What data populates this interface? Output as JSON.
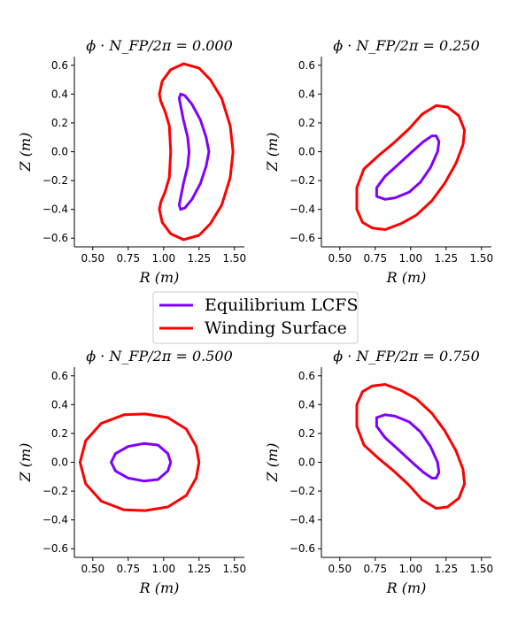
{
  "chart_data": {
    "type": "line",
    "legend": {
      "placement": "center",
      "entries": [
        {
          "name": "Equilibrium LCFS",
          "color": "#7f00ff"
        },
        {
          "name": "Winding Surface",
          "color": "#ff0000"
        }
      ]
    },
    "panels": [
      {
        "title": "ϕ · N_FP/2π = 0.000",
        "xlabel": "R (m)",
        "ylabel": "Z (m)",
        "xlim": [
          0.37,
          1.57
        ],
        "ylim": [
          -0.66,
          0.66
        ],
        "xticks": [
          "0.50",
          "0.75",
          "1.00",
          "1.25",
          "1.50"
        ],
        "yticks": [
          "−0.6",
          "−0.4",
          "−0.2",
          "0.0",
          "0.2",
          "0.4",
          "0.6"
        ],
        "series": [
          {
            "name": "Equilibrium LCFS",
            "color": "#7f00ff",
            "points": [
              [
                1.12,
                0.4
              ],
              [
                1.15,
                0.39
              ],
              [
                1.2,
                0.33
              ],
              [
                1.26,
                0.22
              ],
              [
                1.3,
                0.1
              ],
              [
                1.32,
                0.0
              ],
              [
                1.3,
                -0.1
              ],
              [
                1.26,
                -0.22
              ],
              [
                1.2,
                -0.33
              ],
              [
                1.15,
                -0.39
              ],
              [
                1.12,
                -0.4
              ],
              [
                1.11,
                -0.37
              ],
              [
                1.14,
                -0.22
              ],
              [
                1.17,
                -0.1
              ],
              [
                1.18,
                0.0
              ],
              [
                1.17,
                0.1
              ],
              [
                1.14,
                0.22
              ],
              [
                1.11,
                0.37
              ],
              [
                1.12,
                0.4
              ]
            ]
          },
          {
            "name": "Winding Surface",
            "color": "#ff0000",
            "points": [
              [
                1.14,
                0.61
              ],
              [
                1.25,
                0.58
              ],
              [
                1.33,
                0.5
              ],
              [
                1.41,
                0.37
              ],
              [
                1.47,
                0.18
              ],
              [
                1.49,
                0.0
              ],
              [
                1.47,
                -0.18
              ],
              [
                1.41,
                -0.37
              ],
              [
                1.33,
                -0.5
              ],
              [
                1.25,
                -0.58
              ],
              [
                1.14,
                -0.61
              ],
              [
                1.05,
                -0.57
              ],
              [
                0.99,
                -0.49
              ],
              [
                0.97,
                -0.4
              ],
              [
                0.98,
                -0.35
              ],
              [
                1.01,
                -0.28
              ],
              [
                1.04,
                -0.18
              ],
              [
                1.05,
                0.0
              ],
              [
                1.04,
                0.18
              ],
              [
                1.01,
                0.28
              ],
              [
                0.98,
                0.35
              ],
              [
                0.97,
                0.4
              ],
              [
                0.99,
                0.49
              ],
              [
                1.05,
                0.57
              ],
              [
                1.14,
                0.61
              ]
            ]
          }
        ]
      },
      {
        "title": "ϕ · N_FP/2π = 0.250",
        "xlabel": "R (m)",
        "ylabel": "Z (m)",
        "xlim": [
          0.37,
          1.57
        ],
        "ylim": [
          -0.66,
          0.66
        ],
        "xticks": [
          "0.50",
          "0.75",
          "1.00",
          "1.25",
          "1.50"
        ],
        "yticks": [
          "−0.6",
          "−0.4",
          "−0.2",
          "0.0",
          "0.2",
          "0.4",
          "0.6"
        ],
        "series": [
          {
            "name": "Equilibrium LCFS",
            "color": "#7f00ff",
            "points": [
              [
                1.18,
                0.11
              ],
              [
                1.2,
                0.07
              ],
              [
                1.19,
                0.0
              ],
              [
                1.14,
                -0.11
              ],
              [
                1.07,
                -0.21
              ],
              [
                0.99,
                -0.28
              ],
              [
                0.89,
                -0.32
              ],
              [
                0.82,
                -0.33
              ],
              [
                0.76,
                -0.31
              ],
              [
                0.76,
                -0.25
              ],
              [
                0.82,
                -0.17
              ],
              [
                0.91,
                -0.09
              ],
              [
                1.01,
                0.0
              ],
              [
                1.09,
                0.07
              ],
              [
                1.15,
                0.11
              ],
              [
                1.18,
                0.11
              ]
            ]
          },
          {
            "name": "Winding Surface",
            "color": "#ff0000",
            "points": [
              [
                1.18,
                0.32
              ],
              [
                1.26,
                0.31
              ],
              [
                1.34,
                0.25
              ],
              [
                1.38,
                0.15
              ],
              [
                1.37,
                0.05
              ],
              [
                1.32,
                -0.08
              ],
              [
                1.24,
                -0.22
              ],
              [
                1.15,
                -0.34
              ],
              [
                1.04,
                -0.44
              ],
              [
                0.93,
                -0.5
              ],
              [
                0.82,
                -0.54
              ],
              [
                0.73,
                -0.53
              ],
              [
                0.66,
                -0.49
              ],
              [
                0.62,
                -0.4
              ],
              [
                0.62,
                -0.25
              ],
              [
                0.67,
                -0.12
              ],
              [
                0.77,
                -0.03
              ],
              [
                0.88,
                0.06
              ],
              [
                0.99,
                0.16
              ],
              [
                1.08,
                0.26
              ],
              [
                1.18,
                0.32
              ]
            ]
          }
        ]
      },
      {
        "title": "ϕ · N_FP/2π = 0.500",
        "xlabel": "R (m)",
        "ylabel": "Z (m)",
        "xlim": [
          0.37,
          1.57
        ],
        "ylim": [
          -0.66,
          0.66
        ],
        "xticks": [
          "0.50",
          "0.75",
          "1.00",
          "1.25",
          "1.50"
        ],
        "yticks": [
          "−0.6",
          "−0.4",
          "−0.2",
          "0.0",
          "0.2",
          "0.4",
          "0.6"
        ],
        "series": [
          {
            "name": "Equilibrium LCFS",
            "color": "#7f00ff",
            "points": [
              [
                0.63,
                0.0
              ],
              [
                0.66,
                0.06
              ],
              [
                0.75,
                0.11
              ],
              [
                0.86,
                0.13
              ],
              [
                0.96,
                0.12
              ],
              [
                1.03,
                0.06
              ],
              [
                1.05,
                0.0
              ],
              [
                1.03,
                -0.06
              ],
              [
                0.96,
                -0.12
              ],
              [
                0.86,
                -0.13
              ],
              [
                0.75,
                -0.11
              ],
              [
                0.66,
                -0.06
              ],
              [
                0.63,
                0.0
              ]
            ]
          },
          {
            "name": "Winding Surface",
            "color": "#ff0000",
            "points": [
              [
                0.41,
                0.0
              ],
              [
                0.45,
                0.15
              ],
              [
                0.56,
                0.27
              ],
              [
                0.72,
                0.33
              ],
              [
                0.87,
                0.335
              ],
              [
                1.03,
                0.31
              ],
              [
                1.16,
                0.23
              ],
              [
                1.23,
                0.11
              ],
              [
                1.25,
                0.0
              ],
              [
                1.23,
                -0.11
              ],
              [
                1.16,
                -0.23
              ],
              [
                1.03,
                -0.31
              ],
              [
                0.87,
                -0.335
              ],
              [
                0.72,
                -0.33
              ],
              [
                0.56,
                -0.27
              ],
              [
                0.45,
                -0.15
              ],
              [
                0.41,
                0.0
              ]
            ]
          }
        ]
      },
      {
        "title": "ϕ · N_FP/2π = 0.750",
        "xlabel": "R (m)",
        "ylabel": "Z (m)",
        "xlim": [
          0.37,
          1.57
        ],
        "ylim": [
          -0.66,
          0.66
        ],
        "xticks": [
          "0.50",
          "0.75",
          "1.00",
          "1.25",
          "1.50"
        ],
        "yticks": [
          "−0.6",
          "−0.4",
          "−0.2",
          "0.0",
          "0.2",
          "0.4",
          "0.6"
        ],
        "series": [
          {
            "name": "Equilibrium LCFS",
            "color": "#7f00ff",
            "points": [
              [
                1.18,
                -0.11
              ],
              [
                1.2,
                -0.07
              ],
              [
                1.19,
                0.0
              ],
              [
                1.14,
                0.11
              ],
              [
                1.07,
                0.21
              ],
              [
                0.99,
                0.28
              ],
              [
                0.89,
                0.32
              ],
              [
                0.82,
                0.33
              ],
              [
                0.76,
                0.31
              ],
              [
                0.76,
                0.25
              ],
              [
                0.82,
                0.17
              ],
              [
                0.91,
                0.09
              ],
              [
                1.01,
                0.0
              ],
              [
                1.09,
                -0.07
              ],
              [
                1.15,
                -0.11
              ],
              [
                1.18,
                -0.11
              ]
            ]
          },
          {
            "name": "Winding Surface",
            "color": "#ff0000",
            "points": [
              [
                1.18,
                -0.32
              ],
              [
                1.26,
                -0.31
              ],
              [
                1.34,
                -0.25
              ],
              [
                1.38,
                -0.15
              ],
              [
                1.37,
                -0.05
              ],
              [
                1.32,
                0.08
              ],
              [
                1.24,
                0.22
              ],
              [
                1.15,
                0.34
              ],
              [
                1.04,
                0.44
              ],
              [
                0.93,
                0.5
              ],
              [
                0.82,
                0.54
              ],
              [
                0.73,
                0.53
              ],
              [
                0.66,
                0.49
              ],
              [
                0.62,
                0.4
              ],
              [
                0.62,
                0.25
              ],
              [
                0.67,
                0.12
              ],
              [
                0.77,
                0.03
              ],
              [
                0.88,
                -0.06
              ],
              [
                0.99,
                -0.16
              ],
              [
                1.08,
                -0.26
              ],
              [
                1.18,
                -0.32
              ]
            ]
          }
        ]
      }
    ]
  }
}
